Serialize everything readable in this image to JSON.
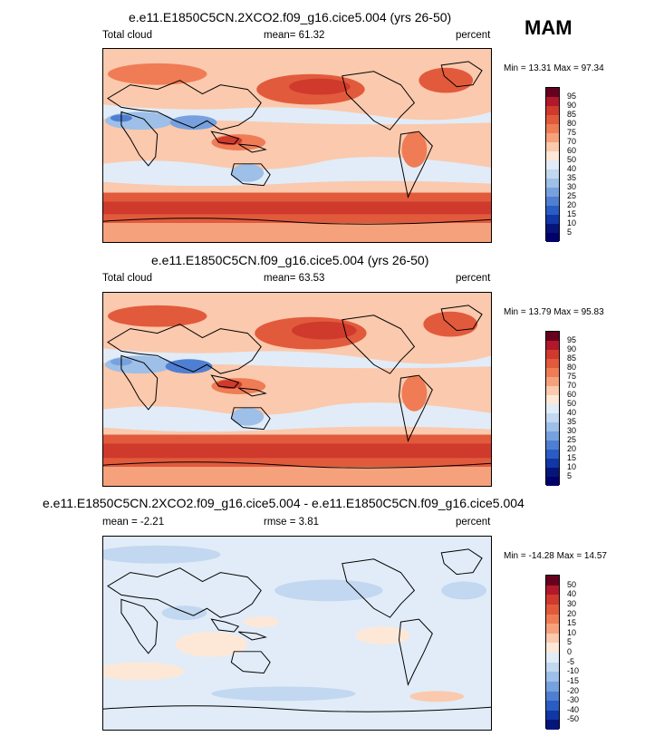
{
  "season": "MAM",
  "panels": [
    {
      "title": "e.e11.E1850C5CN.2XCO2.f09_g16.cice5.004 (yrs 26-50)",
      "left_label": "Total cloud",
      "center_label": "mean=  61.32",
      "right_label": "percent",
      "minmax": "Min = 13.31 Max = 97.34"
    },
    {
      "title": "e.e11.E1850C5CN.f09_g16.cice5.004 (yrs 26-50)",
      "left_label": "Total cloud",
      "center_label": "mean=  63.53",
      "right_label": "percent",
      "minmax": "Min = 13.79 Max = 95.83"
    },
    {
      "title": "e.e11.E1850C5CN.2XCO2.f09_g16.cice5.004 - e.e11.E1850C5CN.f09_g16.cice5.004",
      "left_label": "mean =  -2.21",
      "center_label": "rmse =  3.81",
      "right_label": "percent",
      "minmax": "Min = -14.28 Max =  14.57"
    }
  ],
  "chart_data": [
    {
      "type": "heatmap",
      "title": "e.e11.E1850C5CN.2XCO2.f09_g16.cice5.004 (yrs 26-50)",
      "variable": "Total cloud",
      "units": "percent",
      "mean": 61.32,
      "min": 13.31,
      "max": 97.34,
      "colorbar_labels": [
        "95",
        "90",
        "85",
        "80",
        "75",
        "70",
        "60",
        "50",
        "40",
        "35",
        "30",
        "25",
        "20",
        "15",
        "10",
        "5"
      ]
    },
    {
      "type": "heatmap",
      "title": "e.e11.E1850C5CN.f09_g16.cice5.004 (yrs 26-50)",
      "variable": "Total cloud",
      "units": "percent",
      "mean": 63.53,
      "min": 13.79,
      "max": 95.83,
      "colorbar_labels": [
        "95",
        "90",
        "85",
        "80",
        "75",
        "70",
        "60",
        "50",
        "40",
        "35",
        "30",
        "25",
        "20",
        "15",
        "10",
        "5"
      ]
    },
    {
      "type": "heatmap",
      "title": "e.e11.E1850C5CN.2XCO2.f09_g16.cice5.004 - e.e11.E1850C5CN.f09_g16.cice5.004",
      "units": "percent",
      "mean": -2.21,
      "rmse": 3.81,
      "min": -14.28,
      "max": 14.57,
      "colorbar_labels": [
        "50",
        "40",
        "30",
        "20",
        "15",
        "10",
        "5",
        "0",
        "-5",
        "-10",
        "-15",
        "-20",
        "-30",
        "-40",
        "-50"
      ]
    }
  ],
  "colors": {
    "abs_scale": [
      "#67001f",
      "#b2182b",
      "#cf3a2c",
      "#e25a3c",
      "#ef7c55",
      "#f5a27c",
      "#fbc9ad",
      "#fde8d8",
      "#e1ecf8",
      "#c2d7f0",
      "#9dbfe8",
      "#77a1de",
      "#4f7fd2",
      "#2a5dc3",
      "#1236a6",
      "#06157a",
      "#00006b"
    ],
    "diff_scale": [
      "#67001f",
      "#b2182b",
      "#cf3a2c",
      "#e25a3c",
      "#ef7c55",
      "#f5a27c",
      "#fbc9ad",
      "#fde8d8",
      "#e1ecf8",
      "#c2d7f0",
      "#9dbfe8",
      "#77a1de",
      "#4f7fd2",
      "#2a5dc3",
      "#1236a6",
      "#06157a"
    ]
  }
}
